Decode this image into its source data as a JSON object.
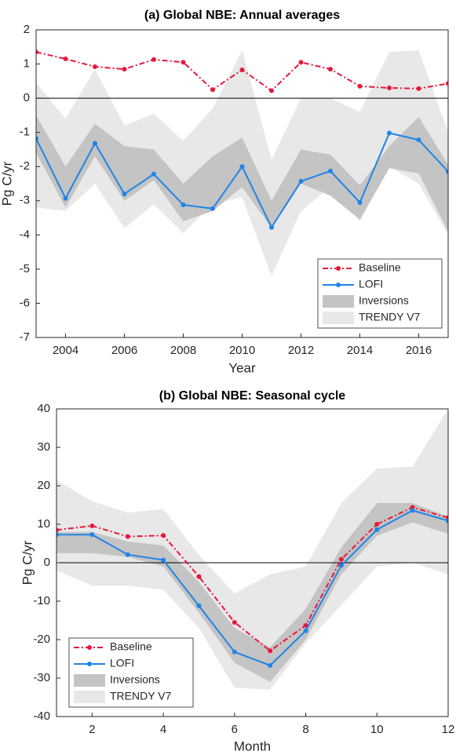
{
  "chart_data": [
    {
      "type": "line",
      "title": "(a) Global NBE:  Annual averages",
      "xlabel": "Year",
      "ylabel": "Pg C/yr",
      "x": [
        2003,
        2004,
        2005,
        2006,
        2007,
        2008,
        2009,
        2010,
        2011,
        2012,
        2013,
        2014,
        2015,
        2016,
        2017
      ],
      "xlim": [
        2003,
        2017
      ],
      "xticks": [
        2004,
        2006,
        2008,
        2010,
        2012,
        2014,
        2016
      ],
      "ylim": [
        -7,
        2
      ],
      "yticks": [
        -7,
        -6,
        -5,
        -4,
        -3,
        -2,
        -1,
        0,
        1,
        2
      ],
      "legend": "lower right",
      "series": [
        {
          "name": "Baseline",
          "color": "#e8173c",
          "values": [
            1.35,
            1.15,
            0.92,
            0.85,
            1.13,
            1.05,
            0.25,
            0.83,
            0.22,
            1.05,
            0.85,
            0.35,
            0.3,
            0.28,
            0.43
          ]
        },
        {
          "name": "LOFI",
          "color": "#1f84e6",
          "values": [
            -1.18,
            -2.93,
            -1.32,
            -2.8,
            -2.22,
            -3.12,
            -3.23,
            -2.0,
            -3.78,
            -2.43,
            -2.13,
            -3.05,
            -1.02,
            -1.22,
            -2.15
          ]
        },
        {
          "name": "Inversions",
          "color": "#c4c4c4",
          "upper": [
            -0.5,
            -2.0,
            -0.75,
            -1.4,
            -1.5,
            -2.5,
            -1.7,
            -1.15,
            -3.0,
            -1.5,
            -1.65,
            -2.55,
            -1.4,
            -0.55,
            -1.95
          ],
          "lower": [
            -1.6,
            -3.2,
            -1.7,
            -3.0,
            -2.4,
            -3.6,
            -3.3,
            -2.6,
            -3.8,
            -2.5,
            -2.85,
            -3.55,
            -2.05,
            -2.2,
            -3.9
          ]
        },
        {
          "name": "TRENDY V7",
          "color": "#e8e8e8",
          "upper": [
            0.45,
            -0.6,
            0.85,
            -0.8,
            -0.45,
            -1.25,
            -0.3,
            1.4,
            -1.8,
            0.0,
            0.0,
            -0.4,
            1.35,
            1.4,
            -1.0
          ],
          "lower": [
            -3.2,
            -3.3,
            -2.5,
            -3.8,
            -3.1,
            -3.95,
            -3.1,
            -2.9,
            -5.2,
            -3.3,
            -2.6,
            -3.6,
            -2.0,
            -2.5,
            -4.0
          ]
        }
      ]
    },
    {
      "type": "line",
      "title": "(b) Global NBE:  Seasonal cycle",
      "xlabel": "Month",
      "ylabel": "Pg C/yr",
      "x": [
        1,
        2,
        3,
        4,
        5,
        6,
        7,
        8,
        9,
        10,
        11,
        12
      ],
      "xlim": [
        1,
        12
      ],
      "xticks": [
        2,
        4,
        6,
        8,
        10,
        12
      ],
      "ylim": [
        -40,
        40
      ],
      "yticks": [
        -40,
        -30,
        -20,
        -10,
        0,
        10,
        20,
        30,
        40
      ],
      "legend": "lower left",
      "series": [
        {
          "name": "Baseline",
          "color": "#e8173c",
          "values": [
            8.5,
            9.6,
            6.8,
            7.1,
            -3.6,
            -15.5,
            -22.9,
            -16.3,
            0.9,
            10,
            14.4,
            11.7
          ]
        },
        {
          "name": "LOFI",
          "color": "#1f84e6",
          "values": [
            7.3,
            7.3,
            2.1,
            0.7,
            -11.2,
            -23.2,
            -26.7,
            -17.7,
            -0.7,
            8.6,
            13.6,
            10.9
          ]
        },
        {
          "name": "Inversions",
          "color": "#c4c4c4",
          "upper": [
            8,
            8,
            5.5,
            4.5,
            -5,
            -17,
            -22,
            -12,
            4,
            15.5,
            15.5,
            12
          ],
          "lower": [
            2.5,
            2.5,
            1.5,
            -1,
            -13,
            -26,
            -31,
            -20,
            -3,
            7,
            10.5,
            7.5
          ]
        },
        {
          "name": "TRENDY V7",
          "color": "#e8e8e8",
          "upper": [
            21.5,
            16,
            13,
            14,
            2,
            -8,
            -3,
            -1,
            15.5,
            24.5,
            25,
            40
          ],
          "lower": [
            -2,
            -6,
            -6,
            -7,
            -17,
            -32.5,
            -33,
            -21,
            -11,
            -1,
            0,
            -3
          ]
        }
      ]
    }
  ]
}
